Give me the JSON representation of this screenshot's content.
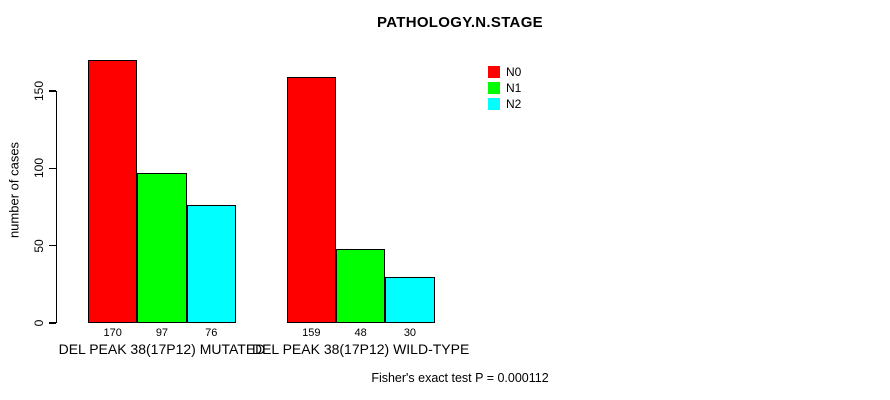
{
  "chart_data": {
    "type": "bar",
    "title": "PATHOLOGY.N.STAGE",
    "ylabel": "number of cases",
    "xlabel": "",
    "ylim": [
      0,
      150
    ],
    "yticks": [
      0,
      50,
      100,
      150
    ],
    "grid": false,
    "legend_position": "inside-top-right",
    "categories": [
      "DEL PEAK 38(17P12) MUTATED",
      "DEL PEAK 38(17P12) WILD-TYPE"
    ],
    "series": [
      {
        "name": "N0",
        "color": "#ff0000",
        "values": [
          170,
          159
        ]
      },
      {
        "name": "N1",
        "color": "#00ff00",
        "values": [
          97,
          48
        ]
      },
      {
        "name": "N2",
        "color": "#00ffff",
        "values": [
          76,
          30
        ]
      }
    ],
    "bar_value_labels": [
      [
        170,
        97,
        76
      ],
      [
        159,
        48,
        30
      ]
    ],
    "annotation": "Fisher's exact test P = 0.000112"
  }
}
